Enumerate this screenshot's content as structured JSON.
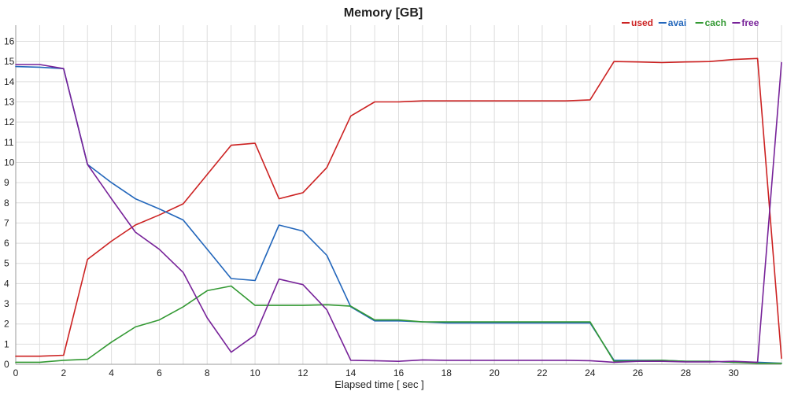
{
  "chart_data": {
    "type": "line",
    "title": "Memory [GB]",
    "xlabel": "Elapsed time [ sec ]",
    "ylabel": "",
    "xlim": [
      0,
      32
    ],
    "ylim": [
      0,
      16.8
    ],
    "x_ticks": [
      0,
      2,
      4,
      6,
      8,
      10,
      12,
      14,
      16,
      18,
      20,
      22,
      24,
      26,
      28,
      30
    ],
    "y_ticks": [
      0,
      1,
      2,
      3,
      4,
      5,
      6,
      7,
      8,
      9,
      10,
      11,
      12,
      13,
      14,
      15,
      16
    ],
    "grid": true,
    "legend_position": "top-right",
    "x": [
      0,
      1,
      2,
      3,
      4,
      5,
      6,
      7,
      8,
      9,
      10,
      11,
      12,
      13,
      14,
      15,
      16,
      17,
      18,
      19,
      20,
      21,
      22,
      23,
      24,
      25,
      26,
      27,
      28,
      29,
      30,
      31,
      32
    ],
    "series": [
      {
        "name": "used",
        "color": "#cc2222",
        "values": [
          0.4,
          0.4,
          0.45,
          5.2,
          6.1,
          6.9,
          7.4,
          7.95,
          9.4,
          10.85,
          10.95,
          8.2,
          8.5,
          9.75,
          12.3,
          13.0,
          13.0,
          13.05,
          13.05,
          13.05,
          13.05,
          13.05,
          13.05,
          13.05,
          13.1,
          15.0,
          14.98,
          14.95,
          14.98,
          15.0,
          15.1,
          15.15,
          0.3
        ]
      },
      {
        "name": "avai",
        "color": "#2266bb",
        "values": [
          14.75,
          14.72,
          14.65,
          9.9,
          9.0,
          8.2,
          7.7,
          7.15,
          5.7,
          4.25,
          4.15,
          6.9,
          6.6,
          5.4,
          2.85,
          2.15,
          2.15,
          2.1,
          2.05,
          2.05,
          2.05,
          2.05,
          2.05,
          2.05,
          2.05,
          0.2,
          0.2,
          0.2,
          0.15,
          0.15,
          0.1,
          0.1,
          0.05
        ]
      },
      {
        "name": "cach",
        "color": "#339933",
        "values": [
          0.1,
          0.1,
          0.2,
          0.25,
          1.1,
          1.85,
          2.2,
          2.85,
          3.65,
          3.88,
          2.92,
          2.92,
          2.92,
          2.95,
          2.88,
          2.2,
          2.2,
          2.1,
          2.1,
          2.1,
          2.1,
          2.1,
          2.1,
          2.1,
          2.1,
          0.15,
          0.18,
          0.2,
          0.15,
          0.15,
          0.1,
          0.05,
          0.05
        ]
      },
      {
        "name": "free",
        "color": "#772299",
        "values": [
          14.85,
          14.85,
          14.65,
          9.9,
          8.2,
          6.55,
          5.7,
          4.55,
          2.3,
          0.6,
          1.45,
          4.22,
          3.95,
          2.7,
          0.2,
          0.18,
          0.15,
          0.22,
          0.2,
          0.2,
          0.2,
          0.2,
          0.2,
          0.2,
          0.18,
          0.1,
          0.15,
          0.15,
          0.12,
          0.12,
          0.15,
          0.1,
          14.95
        ]
      }
    ]
  }
}
